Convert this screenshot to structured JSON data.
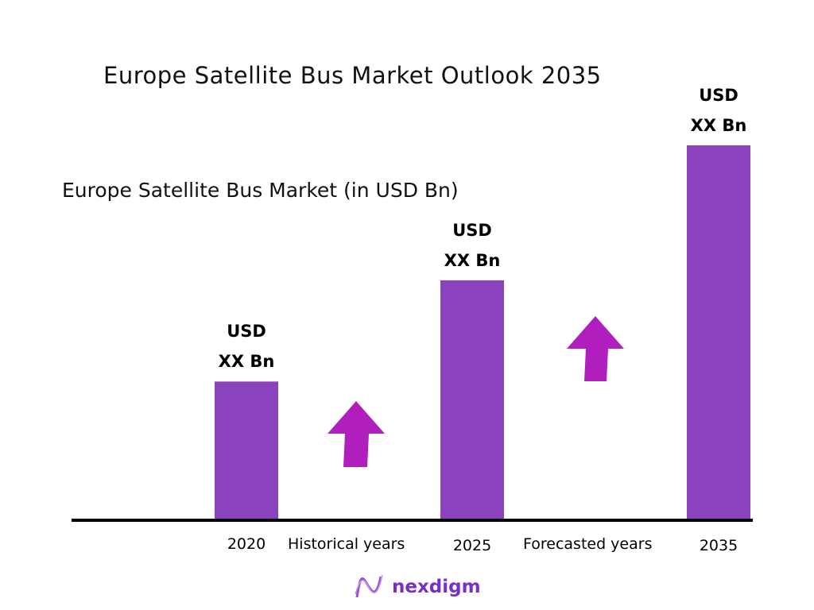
{
  "chart_data": {
    "type": "bar",
    "title": "Europe Satellite Bus Market Outlook 2035",
    "subtitle": "Europe Satellite Bus Market (in USD Bn)",
    "categories": [
      "2020",
      "2025",
      "2035"
    ],
    "relative_values": [
      0.37,
      0.64,
      1.0
    ],
    "data_labels": [
      {
        "line1": "USD",
        "line2": "XX Bn"
      },
      {
        "line1": "USD",
        "line2": "XX Bn"
      },
      {
        "line1": "USD",
        "line2": "XX Bn"
      }
    ],
    "annotations": [
      "Historical years",
      "Forecasted years"
    ],
    "grid": false,
    "bar_color": "#8a43bd",
    "arrow_color": "#b01ebe"
  },
  "brand": {
    "name": "nexdigm",
    "color": "#7a2fc0"
  }
}
